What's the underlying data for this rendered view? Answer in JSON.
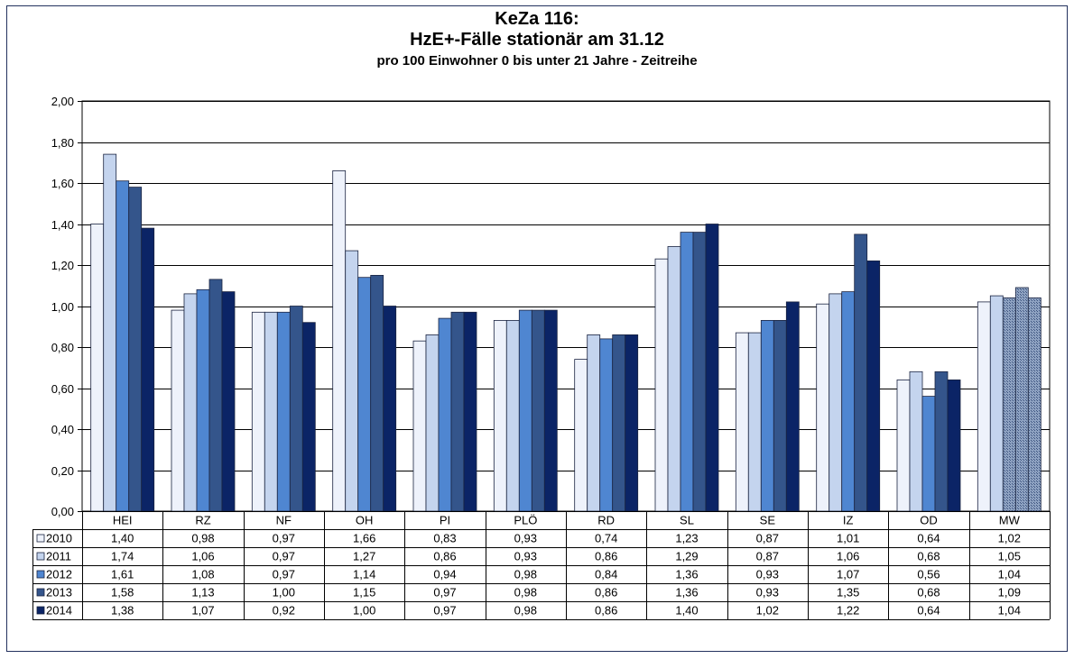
{
  "chart_data": {
    "type": "bar",
    "title": "KeZa 116:",
    "title_line2": "HzE+-Fälle stationär am 31.12",
    "subtitle": "pro 100 Einwohner 0 bis unter 21 Jahre - Zeitreihe",
    "categories": [
      "HEI",
      "RZ",
      "NF",
      "OH",
      "PI",
      "PLÖ",
      "RD",
      "SL",
      "SE",
      "IZ",
      "OD",
      "MW"
    ],
    "ylim": [
      0,
      2
    ],
    "yticks": [
      "0,00",
      "0,20",
      "0,40",
      "0,60",
      "0,80",
      "1,00",
      "1,20",
      "1,40",
      "1,60",
      "1,80",
      "2,00"
    ],
    "grid": true,
    "legend": "data-table-left",
    "series": [
      {
        "name": "2010",
        "color": "#eef2fb",
        "values": [
          1.4,
          0.98,
          0.97,
          1.66,
          0.83,
          0.93,
          0.74,
          1.23,
          0.87,
          1.01,
          0.64,
          1.02
        ],
        "labels": [
          "1,40",
          "0,98",
          "0,97",
          "1,66",
          "0,83",
          "0,93",
          "0,74",
          "1,23",
          "0,87",
          "1,01",
          "0,64",
          "1,02"
        ]
      },
      {
        "name": "2011",
        "color": "#c4d4ee",
        "values": [
          1.74,
          1.06,
          0.97,
          1.27,
          0.86,
          0.93,
          0.86,
          1.29,
          0.87,
          1.06,
          0.68,
          1.05
        ],
        "labels": [
          "1,74",
          "1,06",
          "0,97",
          "1,27",
          "0,86",
          "0,93",
          "0,86",
          "1,29",
          "0,87",
          "1,06",
          "0,68",
          "1,05"
        ]
      },
      {
        "name": "2012",
        "color": "#4f86d1",
        "values": [
          1.61,
          1.08,
          0.97,
          1.14,
          0.94,
          0.98,
          0.84,
          1.36,
          0.93,
          1.07,
          0.56,
          1.04
        ],
        "labels": [
          "1,61",
          "1,08",
          "0,97",
          "1,14",
          "0,94",
          "0,98",
          "0,84",
          "1,36",
          "0,93",
          "1,07",
          "0,56",
          "1,04"
        ]
      },
      {
        "name": "2013",
        "color": "#34558b",
        "values": [
          1.58,
          1.13,
          1.0,
          1.15,
          0.97,
          0.98,
          0.86,
          1.36,
          0.93,
          1.35,
          0.68,
          1.09
        ],
        "labels": [
          "1,58",
          "1,13",
          "1,00",
          "1,15",
          "0,97",
          "0,98",
          "0,86",
          "1,36",
          "0,93",
          "1,35",
          "0,68",
          "1,09"
        ]
      },
      {
        "name": "2014",
        "color": "#0b2466",
        "values": [
          1.38,
          1.07,
          0.92,
          1.0,
          0.97,
          0.98,
          0.86,
          1.4,
          1.02,
          1.22,
          0.64,
          1.04
        ],
        "labels": [
          "1,38",
          "1,07",
          "0,92",
          "1,00",
          "0,97",
          "0,98",
          "0,86",
          "1,40",
          "1,02",
          "1,22",
          "0,64",
          "1,04"
        ]
      }
    ]
  }
}
